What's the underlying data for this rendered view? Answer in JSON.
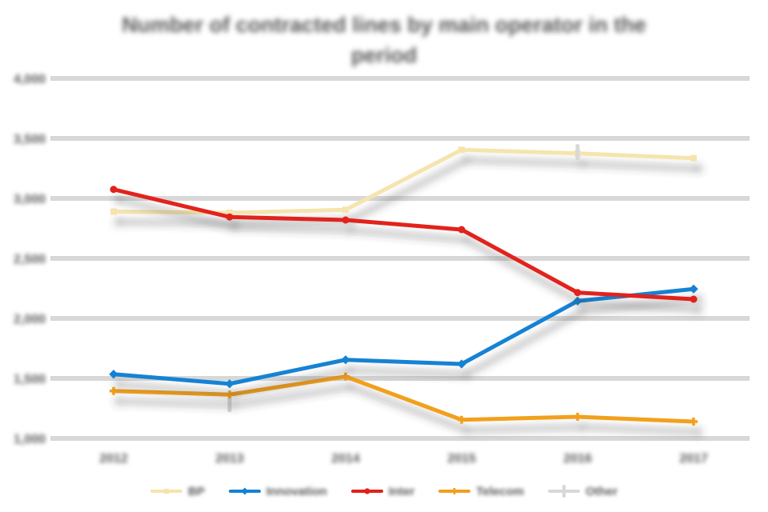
{
  "title": {
    "line1": "Number of contracted lines by main operator in the",
    "line2": "period"
  },
  "chart_data": {
    "type": "line",
    "text_legibility": "all text in source screenshot is blurred/illegible; label strings are length-matched placeholders",
    "title": "Number of contracted lines by main operator in the period",
    "categories": [
      "2012",
      "2013",
      "2014",
      "2015",
      "2016",
      "2017"
    ],
    "series": [
      {
        "name": "BP",
        "color": "#F5E4AE",
        "marker": "square",
        "shadow": true,
        "z": 1,
        "values": [
          2890,
          2880,
          2905,
          3405,
          3375,
          3335
        ]
      },
      {
        "name": "Innovation",
        "color": "#1482D4",
        "marker": "diamond",
        "shadow": true,
        "z": 4,
        "values": [
          1535,
          1455,
          1655,
          1620,
          2145,
          2245
        ]
      },
      {
        "name": "Inter",
        "color": "#E2201A",
        "marker": "circle",
        "shadow": true,
        "z": 5,
        "values": [
          3075,
          2845,
          2820,
          2740,
          2215,
          2160
        ]
      },
      {
        "name": "Telecom",
        "color": "#F2A01E",
        "marker": "plus",
        "shadow": true,
        "z": 3,
        "values": [
          1395,
          1365,
          1515,
          1155,
          1180,
          1140
        ]
      },
      {
        "name": "Other",
        "color": "#D8D8D8",
        "marker": "tick",
        "shadow": false,
        "z": 2,
        "values": [
          null,
          1285,
          null,
          null,
          3385,
          null
        ]
      }
    ],
    "xlabel": "",
    "ylabel": "",
    "ylim": [
      1000,
      4000
    ],
    "yticks": [
      1000,
      1500,
      2000,
      2500,
      3000,
      3500,
      4000
    ],
    "ytick_labels": [
      "1,000",
      "1,500",
      "2,000",
      "2,500",
      "3,000",
      "3,500",
      "4,000"
    ],
    "grid": true,
    "gridline_color": "#D8D8D8",
    "text_color": "#595959",
    "legend_position": "bottom"
  }
}
